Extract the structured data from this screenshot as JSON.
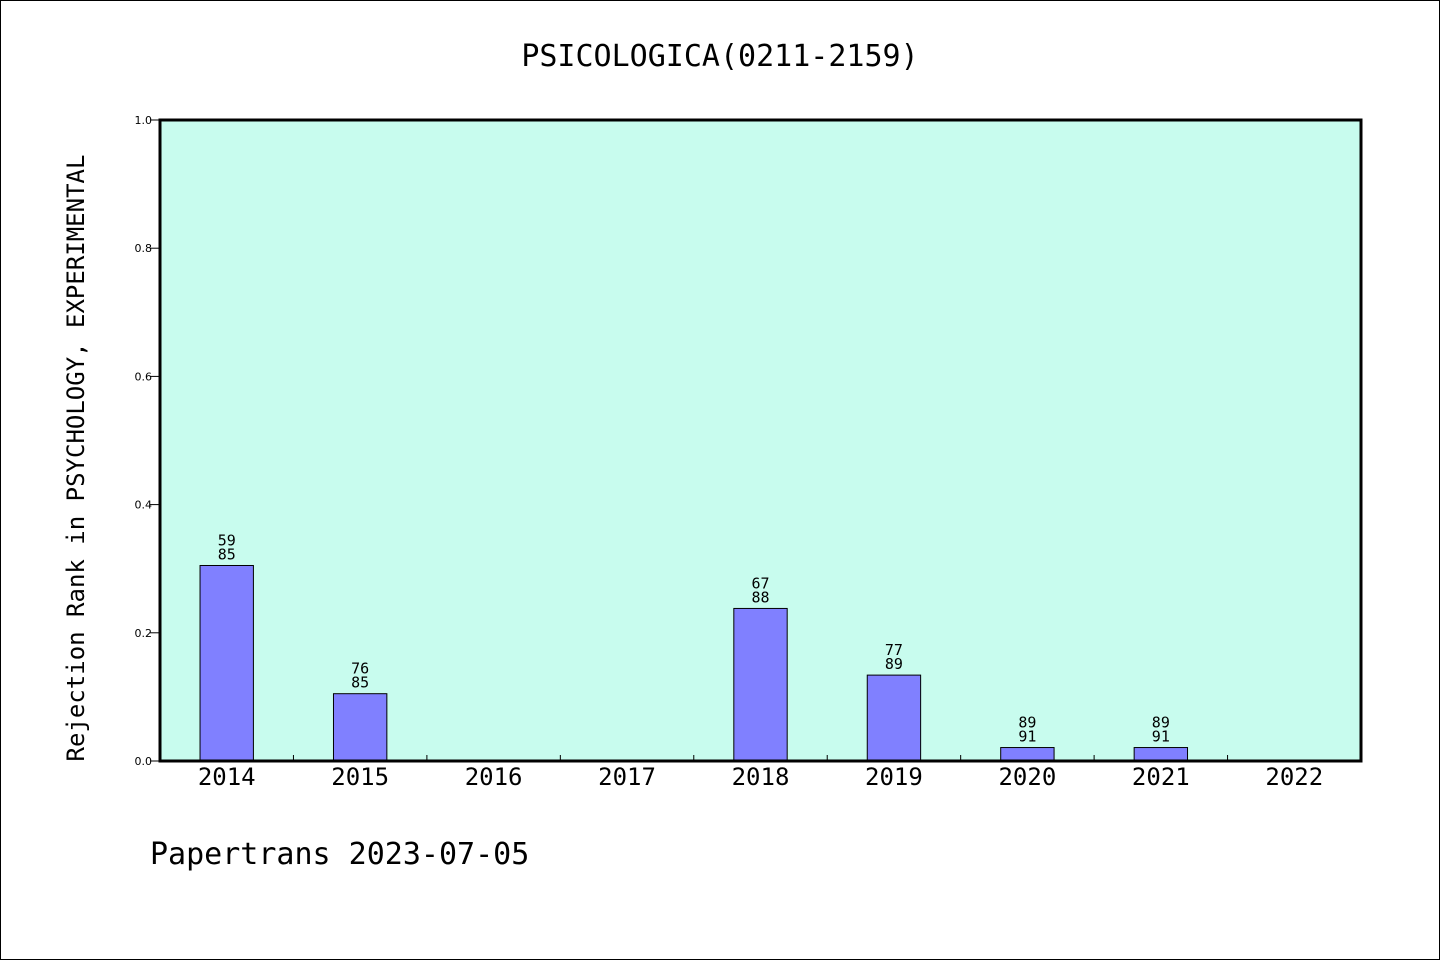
{
  "chart_data": {
    "type": "bar",
    "title": "PSICOLOGICA(0211-2159)",
    "xlabel": "",
    "ylabel": "Rejection Rank in PSYCHOLOGY, EXPERIMENTAL",
    "categories": [
      "2014",
      "2015",
      "2016",
      "2017",
      "2018",
      "2019",
      "2020",
      "2021",
      "2022"
    ],
    "values": [
      0.305,
      0.105,
      null,
      null,
      0.238,
      0.134,
      0.021,
      0.021,
      null
    ],
    "labels_top": [
      "59",
      "76",
      "",
      "",
      "67",
      "77",
      "89",
      "89",
      ""
    ],
    "labels_bottom": [
      "85",
      "85",
      "",
      "",
      "88",
      "89",
      "91",
      "91",
      ""
    ],
    "ylim": [
      0,
      1.0
    ],
    "yticks": [
      "0.0",
      "0.2",
      "0.4",
      "0.6",
      "0.8",
      "1.0"
    ],
    "grid": false,
    "colors": {
      "plot_background": "#c8fcee",
      "bar_fill": "#8080ff",
      "bar_stroke": "#000000"
    }
  },
  "footer": "Papertrans 2023-07-05"
}
